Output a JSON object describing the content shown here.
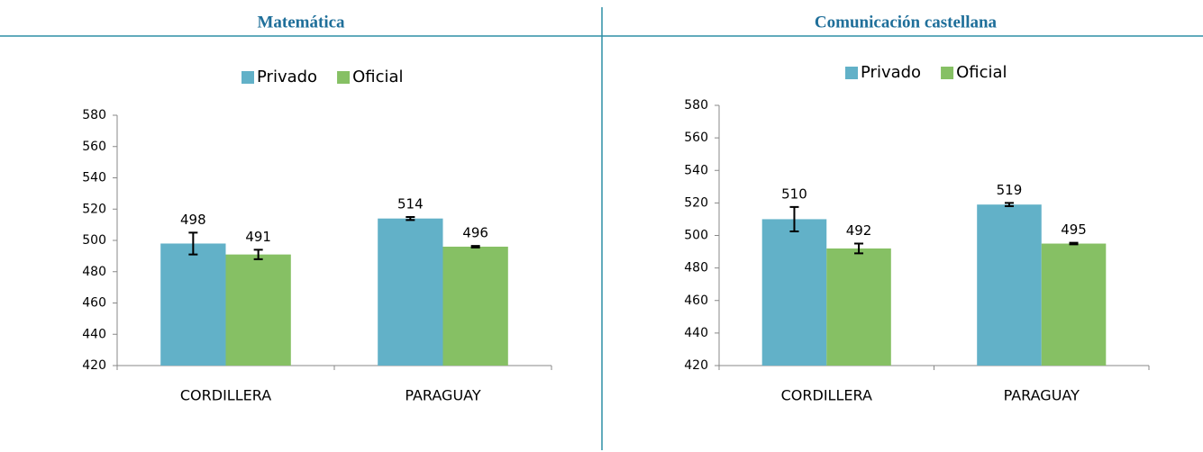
{
  "chart_data": [
    {
      "type": "bar",
      "title": "Matemática",
      "categories": [
        "CORDILLERA",
        "PARAGUAY"
      ],
      "series": [
        {
          "name": "Privado",
          "color": "#62b1c8",
          "values": [
            498,
            514
          ],
          "errors": [
            7,
            1
          ]
        },
        {
          "name": "Oficial",
          "color": "#86c064",
          "values": [
            491,
            496
          ],
          "errors": [
            3,
            0.5
          ]
        }
      ],
      "ylim": [
        420,
        580
      ],
      "yticks": [
        420,
        440,
        460,
        480,
        500,
        520,
        540,
        560,
        580
      ],
      "legend": "top"
    },
    {
      "type": "bar",
      "title": "Comunicación castellana",
      "categories": [
        "CORDILLERA",
        "PARAGUAY"
      ],
      "series": [
        {
          "name": "Privado",
          "color": "#62b1c8",
          "values": [
            510,
            519
          ],
          "errors": [
            7.5,
            1
          ]
        },
        {
          "name": "Oficial",
          "color": "#86c064",
          "values": [
            492,
            495
          ],
          "errors": [
            3,
            0.5
          ]
        }
      ],
      "ylim": [
        420,
        580
      ],
      "yticks": [
        420,
        440,
        460,
        480,
        500,
        520,
        540,
        560,
        580
      ],
      "legend": "top"
    }
  ]
}
